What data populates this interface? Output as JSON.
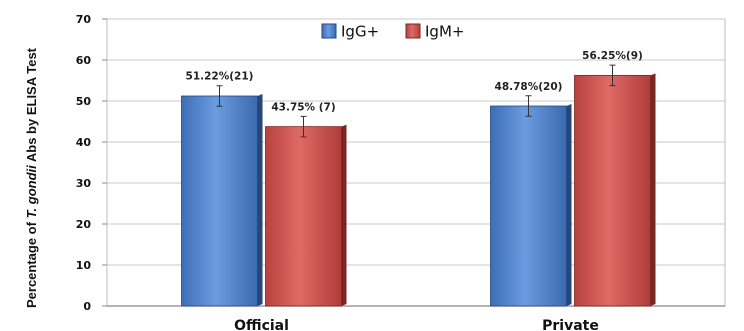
{
  "chart_data": {
    "type": "bar",
    "categories": [
      "Official",
      "Private"
    ],
    "series": [
      {
        "name": "IgG+",
        "values": [
          51.22,
          48.78
        ],
        "errors": [
          2.5,
          2.5
        ],
        "labels": [
          "51.22%(21)",
          "48.78%(20)"
        ],
        "color": "#4f81c9"
      },
      {
        "name": "IgM+",
        "values": [
          43.75,
          56.25
        ],
        "errors": [
          2.5,
          2.5
        ],
        "labels": [
          "43.75% (7)",
          "56.25%(9)"
        ],
        "color": "#c9504d"
      }
    ],
    "title": "",
    "xlabel": "",
    "ylabel": "Percentage of T. gondii Abs by ELISA Test",
    "ylabel_parts": [
      "Percentage of ",
      "T. gondii",
      " Abs by ELISA Test"
    ],
    "ylim": [
      0,
      70
    ],
    "yticks": [
      "0",
      "10",
      "20",
      "30",
      "40",
      "50",
      "60",
      "70"
    ],
    "grid": true,
    "legend_position": "top-center"
  }
}
